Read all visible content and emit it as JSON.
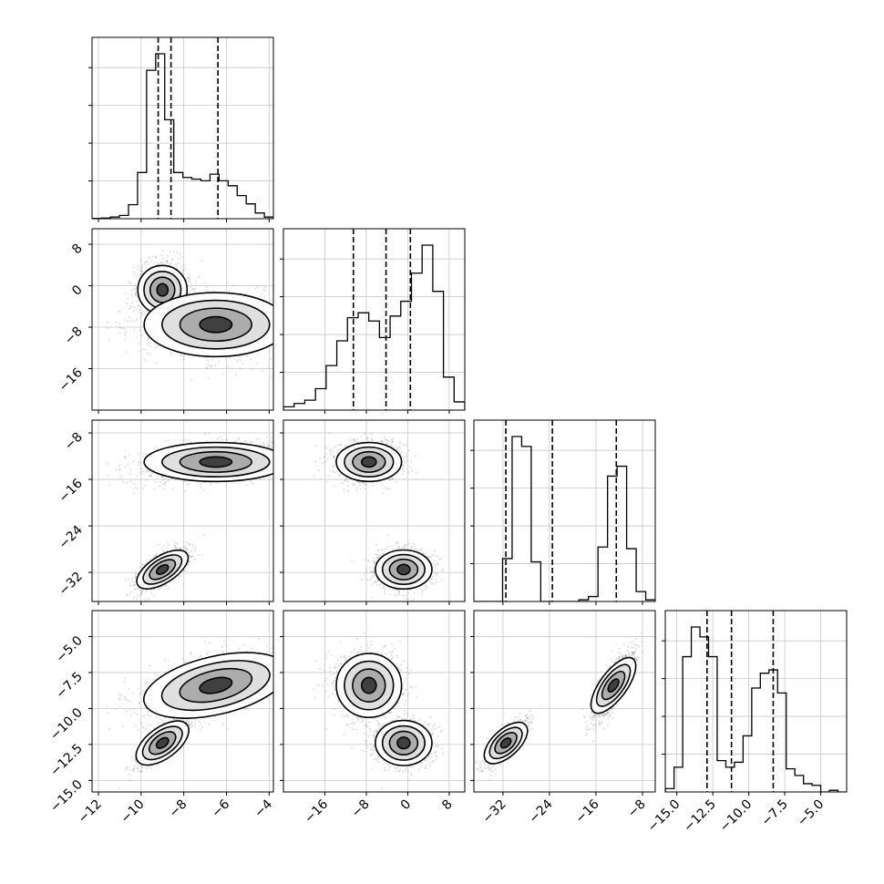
{
  "chart_data": {
    "type": "corner",
    "n_params": 4,
    "grid": true,
    "hist_color": "#000000",
    "scatter_color": "#808080",
    "quantile_line_style": "dashed",
    "params": [
      {
        "range": [
          -12.3,
          -3.8
        ],
        "ticks": [
          "-12",
          "-10",
          "-8",
          "-6",
          "-4"
        ],
        "quantiles": [
          -9.2,
          -8.6,
          -6.4
        ],
        "hist": [
          0.002,
          0.004,
          0.01,
          0.02,
          0.085,
          0.28,
          0.9,
          1.0,
          0.6,
          0.28,
          0.25,
          0.24,
          0.23,
          0.27,
          0.23,
          0.2,
          0.14,
          0.09,
          0.035,
          0.01
        ]
      },
      {
        "range": [
          -24,
          11
        ],
        "ticks": [
          "-16",
          "-8",
          "0",
          "8"
        ],
        "quantiles": [
          -10.5,
          -4.2,
          0.5
        ],
        "hist": [
          0.02,
          0.04,
          0.06,
          0.13,
          0.27,
          0.42,
          0.56,
          0.59,
          0.54,
          0.44,
          0.57,
          0.66,
          0.83,
          1.0,
          0.72,
          0.2,
          0.05
        ]
      },
      {
        "range": [
          -37,
          -5.8
        ],
        "ticks": [
          "-32",
          "-24",
          "-16",
          "-8"
        ],
        "quantiles": [
          -31.5,
          -23.5,
          -12.5
        ],
        "hist": [
          0.0,
          0.0,
          0.0,
          0.26,
          1.0,
          0.94,
          0.24,
          0.0,
          0.0,
          0.0,
          0.0,
          0.01,
          0.03,
          0.33,
          0.76,
          0.82,
          0.32,
          0.06,
          0.01
        ]
      },
      {
        "range": [
          -15.8,
          -3.2
        ],
        "ticks": [
          "-15.0",
          "-12.5",
          "-10.0",
          "-7.5",
          "-5.0"
        ],
        "quantiles": [
          -12.9,
          -11.2,
          -8.3
        ],
        "hist": [
          0.02,
          0.15,
          0.82,
          1.0,
          0.94,
          0.82,
          0.19,
          0.15,
          0.18,
          0.34,
          0.63,
          0.72,
          0.74,
          0.6,
          0.14,
          0.1,
          0.05,
          0.04,
          0.0,
          0.01,
          0.0
        ]
      }
    ],
    "clusters": [
      {
        "center": [
          -9.0,
          -0.8,
          -31.5,
          -12.4
        ],
        "sd": [
          0.55,
          2.6,
          1.6,
          0.75
        ],
        "weight": 0.5,
        "corr": {
          "0-2": 0.8,
          "0-3": 0.8,
          "2-3": 0.8
        }
      },
      {
        "center": [
          -6.5,
          -7.5,
          -13.0,
          -8.4
        ],
        "sd": [
          1.6,
          3.0,
          1.6,
          1.1
        ],
        "weight": 0.5,
        "corr": {
          "0-3": 0.5,
          "2-3": 0.8
        }
      }
    ]
  }
}
